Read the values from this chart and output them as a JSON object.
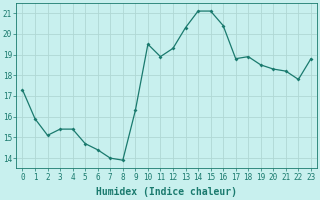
{
  "x": [
    0,
    1,
    2,
    3,
    4,
    5,
    6,
    7,
    8,
    9,
    10,
    11,
    12,
    13,
    14,
    15,
    16,
    17,
    18,
    19,
    20,
    21,
    22,
    23
  ],
  "y": [
    17.3,
    15.9,
    15.1,
    15.4,
    15.4,
    14.7,
    14.4,
    14.0,
    13.9,
    16.3,
    19.5,
    18.9,
    19.3,
    20.3,
    21.1,
    21.1,
    20.4,
    18.8,
    18.9,
    18.5,
    18.3,
    18.2,
    17.8,
    18.8
  ],
  "line_color": "#1a7a6e",
  "marker": "D",
  "marker_size": 2.0,
  "bg_color": "#c8f0ee",
  "grid_color": "#b0d8d4",
  "xlabel": "Humidex (Indice chaleur)",
  "ylim": [
    13.5,
    21.5
  ],
  "xlim": [
    -0.5,
    23.5
  ],
  "yticks": [
    14,
    15,
    16,
    17,
    18,
    19,
    20,
    21
  ],
  "xticks": [
    0,
    1,
    2,
    3,
    4,
    5,
    6,
    7,
    8,
    9,
    10,
    11,
    12,
    13,
    14,
    15,
    16,
    17,
    18,
    19,
    20,
    21,
    22,
    23
  ],
  "tick_color": "#1a7a6e",
  "label_fontsize": 7,
  "tick_fontsize": 5.5,
  "linewidth": 0.9,
  "spine_color": "#1a7a6e"
}
